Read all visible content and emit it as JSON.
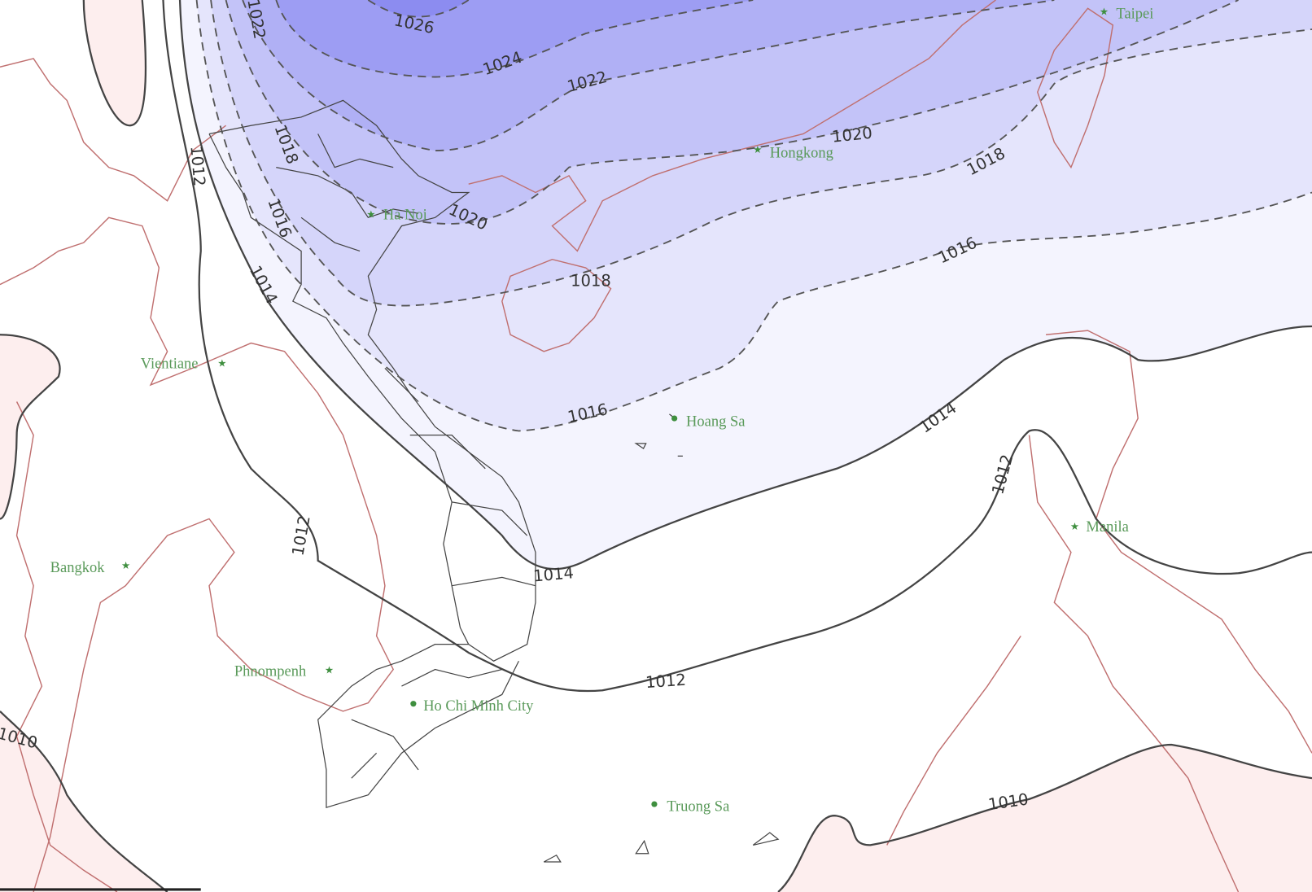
{
  "map": {
    "colors": {
      "p1026": "#8c8cf0",
      "p1024": "#9d9df3",
      "p1022": "#b0b0f5",
      "p1020": "#c3c3f8",
      "p1018": "#d5d5fa",
      "p1016": "#e5e5fc",
      "p1014": "#f4f4fe",
      "low1010": "#fdeeee",
      "coastline": "#c07070",
      "city_text": "#5a9a5a",
      "isobar": "#444444"
    },
    "isobar_labels": [
      "1026",
      "1024",
      "1022",
      "1022",
      "1020",
      "1020",
      "1018",
      "1018",
      "1018",
      "1016",
      "1016",
      "1016",
      "1014",
      "1014",
      "1014",
      "1012",
      "1012",
      "1012",
      "1012",
      "1010",
      "1010",
      "10"
    ],
    "cities": [
      {
        "name": "Taipei",
        "icon": "star-icon"
      },
      {
        "name": "Hongkong",
        "icon": "star-icon"
      },
      {
        "name": "Ha Noi",
        "icon": "star-icon"
      },
      {
        "name": "Vientiane",
        "icon": "star-icon"
      },
      {
        "name": "Hoang Sa",
        "icon": "dot-icon"
      },
      {
        "name": "Bangkok",
        "icon": "star-icon"
      },
      {
        "name": "Manila",
        "icon": "star-icon"
      },
      {
        "name": "Phnompenh",
        "icon": "star-icon"
      },
      {
        "name": "Ho Chi Minh City",
        "icon": "dot-icon"
      },
      {
        "name": "Truong Sa",
        "icon": "dot-icon"
      }
    ]
  }
}
